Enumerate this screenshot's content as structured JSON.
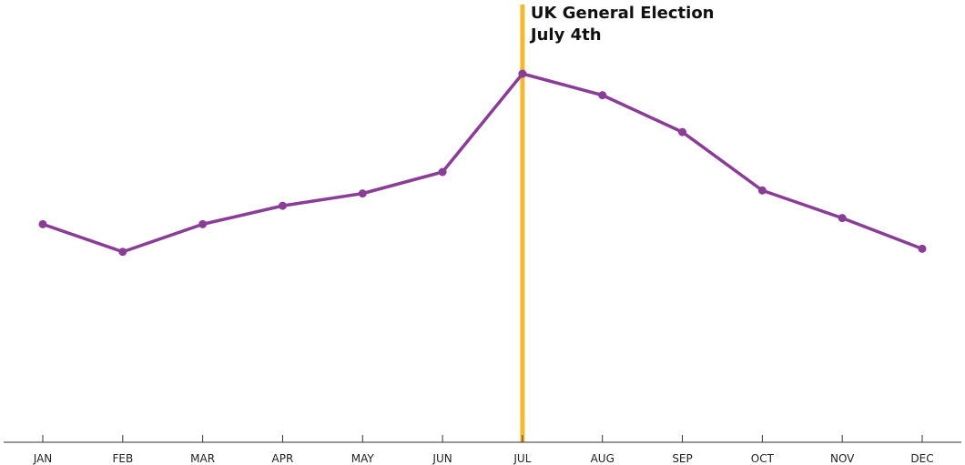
{
  "chart_data": {
    "type": "line",
    "categories": [
      "JAN",
      "FEB",
      "MAR",
      "APR",
      "MAY",
      "JUN",
      "JUL",
      "AUG",
      "SEP",
      "OCT",
      "NOV",
      "DEC"
    ],
    "series": [
      {
        "values": [
          0.51,
          0.42,
          0.51,
          0.57,
          0.61,
          0.68,
          1.0,
          0.93,
          0.81,
          0.62,
          0.53,
          0.43
        ],
        "color": "#8a3d96"
      }
    ],
    "ylim": [
      -0.2,
      1.0
    ],
    "title": "",
    "xlabel": "",
    "ylabel": "",
    "grid": false,
    "legend": "none",
    "annotation": {
      "category": "JUL",
      "lines": [
        "UK General Election",
        "July 4th"
      ],
      "color": "#f5b82e"
    }
  }
}
